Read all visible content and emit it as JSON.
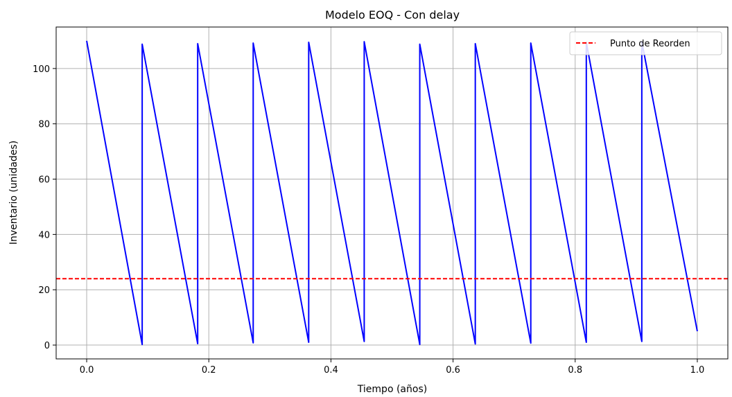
{
  "chart_data": {
    "type": "line",
    "title": "Modelo EOQ - Con delay",
    "xlabel": "Tiempo (años)",
    "ylabel": "Inventario (unidades)",
    "xlim": [
      -0.05,
      1.05
    ],
    "ylim": [
      -5,
      115
    ],
    "xticks": [
      0.0,
      0.2,
      0.4,
      0.6,
      0.8,
      1.0
    ],
    "xtick_labels": [
      "0.0",
      "0.2",
      "0.4",
      "0.6",
      "0.8",
      "1.0"
    ],
    "yticks": [
      0,
      20,
      40,
      60,
      80,
      100
    ],
    "ytick_labels": [
      "0",
      "20",
      "40",
      "60",
      "80",
      "100"
    ],
    "grid": true,
    "legend": {
      "placement": "top-right",
      "entries": [
        "Punto de Reorden"
      ]
    },
    "series": [
      {
        "kind": "inventory",
        "color": "#0000ff",
        "x": [
          0.0,
          0.0909,
          0.0909,
          0.1818,
          0.1818,
          0.2727,
          0.2727,
          0.3636,
          0.3636,
          0.4545,
          0.4545,
          0.5455,
          0.5455,
          0.6364,
          0.6364,
          0.7273,
          0.7273,
          0.8182,
          0.8182,
          0.9091,
          0.9091,
          1.0
        ],
        "y": [
          110.0,
          0.2,
          108.8,
          0.5,
          109.0,
          0.8,
          109.2,
          1.0,
          109.5,
          1.3,
          109.7,
          0.2,
          108.8,
          0.4,
          109.0,
          0.7,
          109.2,
          1.0,
          109.5,
          1.3,
          109.7,
          5.0
        ]
      },
      {
        "kind": "reorder",
        "name": "Punto de Reorden",
        "color": "#ff0000",
        "dashed": true,
        "y_constant": 24
      }
    ]
  }
}
